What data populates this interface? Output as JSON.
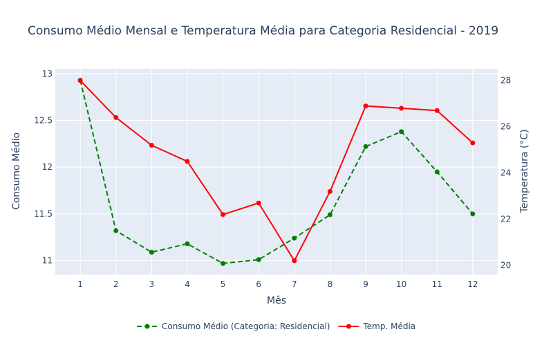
{
  "chart_data": {
    "type": "line",
    "title": "Consumo Médio Mensal e Temperatura Média para Categoria Residencial - 2019",
    "xlabel": "Mês",
    "ylabel_left": "Consumo Médio",
    "ylabel_right": "Temperatura (°C)",
    "x": [
      1,
      2,
      3,
      4,
      5,
      6,
      7,
      8,
      9,
      10,
      11,
      12
    ],
    "x_ticks": [
      "1",
      "2",
      "3",
      "4",
      "5",
      "6",
      "7",
      "8",
      "9",
      "10",
      "11",
      "12"
    ],
    "ylim_left": [
      10.85,
      13.05
    ],
    "yticks_left": [
      "11",
      "11.5",
      "12",
      "12.5",
      "13"
    ],
    "ylim_right": [
      19.6,
      28.5
    ],
    "yticks_right": [
      "20",
      "22",
      "24",
      "26",
      "28"
    ],
    "grid": true,
    "legend_position": "bottom-center",
    "series": [
      {
        "name": "Consumo Médio (Categoria: Residencial)",
        "axis": "left",
        "color": "#008000",
        "line_style": "dashed",
        "values": [
          12.93,
          11.32,
          11.09,
          11.18,
          10.97,
          11.01,
          11.24,
          11.49,
          12.22,
          12.38,
          11.95,
          11.5
        ]
      },
      {
        "name": "Temp. Média",
        "axis": "right",
        "color": "#ff0000",
        "line_style": "solid",
        "values": [
          28.0,
          26.4,
          25.2,
          24.5,
          22.2,
          22.7,
          20.2,
          23.2,
          26.9,
          26.8,
          26.7,
          25.3
        ]
      }
    ]
  },
  "colors": {
    "plot_background": "#e5ecf6",
    "grid": "#ffffff",
    "text": "#2a3f5f"
  }
}
